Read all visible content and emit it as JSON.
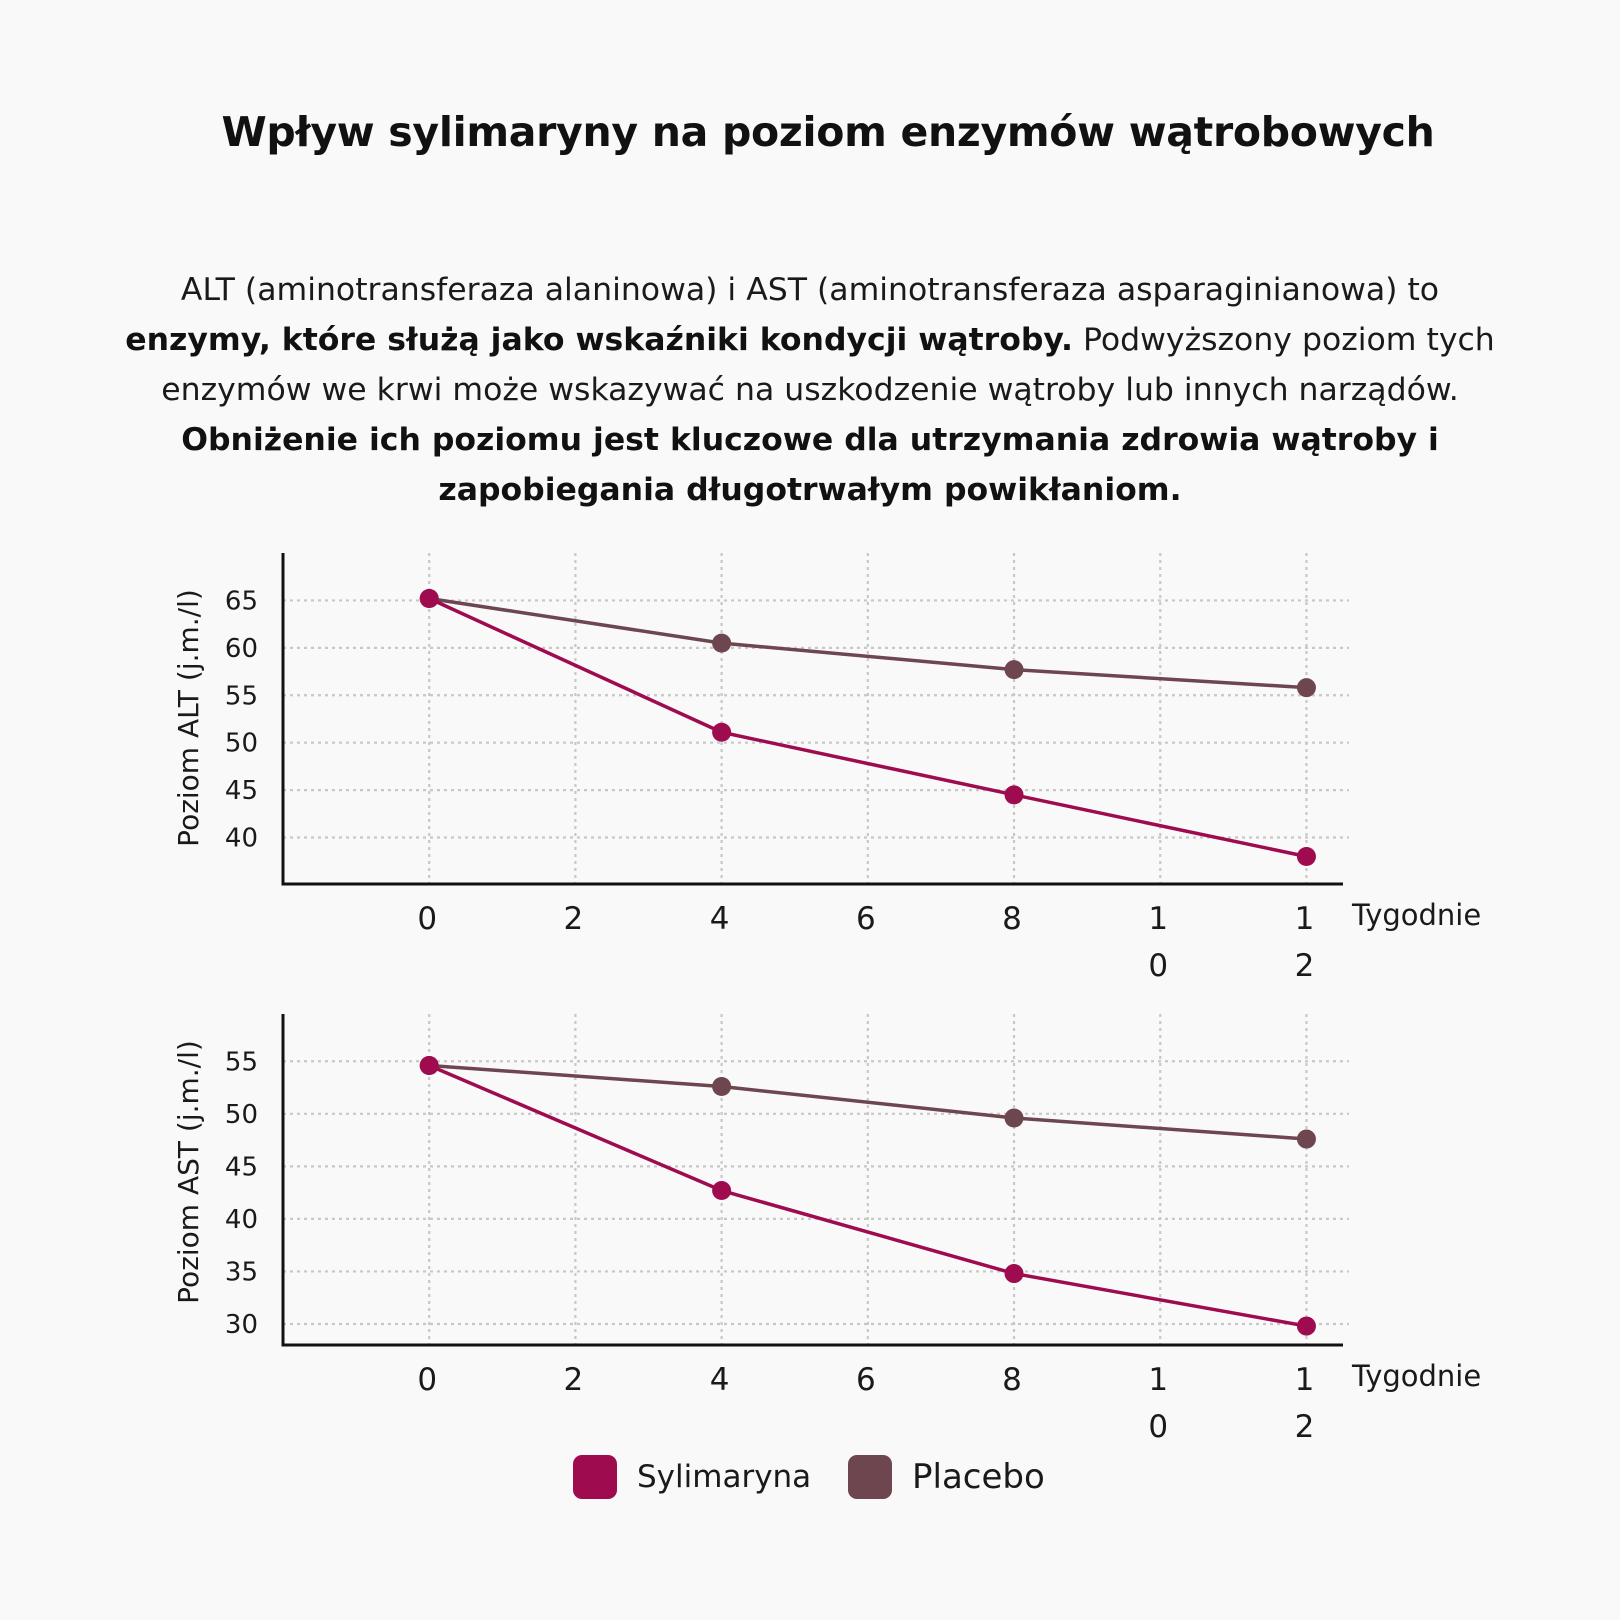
{
  "title": "Wpływ sylimaryny na poziom enzymów wątrobowych",
  "intro": {
    "p1": "ALT (aminotransferaza alaninowa) i AST (aminotransferaza asparaginianowa) to ",
    "b1": "enzymy, które służą jako wskaźniki kondycji wątroby.",
    "p2": " Podwyższony poziom tych enzymów we krwi może wskazywać na uszkodzenie wątroby lub innych narządów. ",
    "b2": "Obniżenie ich poziomu jest kluczowe dla utrzymania zdrowia wątroby i zapobiegania długotrwałym powikłaniom."
  },
  "colors": {
    "sylimaryna": "#9e0b4f",
    "placebo": "#6e4650",
    "axis": "#111111",
    "grid": "#c8c8c8"
  },
  "legend": [
    {
      "label": "Sylimaryna",
      "color": "#9e0b4f"
    },
    {
      "label": "Placebo",
      "color": "#6e4650"
    }
  ],
  "chart_data": [
    {
      "type": "line",
      "ylabel": "Poziom ALT (j.m./l)",
      "xlabel": "Tygodnie",
      "x_ticks": [
        {
          "value": 0,
          "lines": [
            "0"
          ]
        },
        {
          "value": 2,
          "lines": [
            "2"
          ]
        },
        {
          "value": 4,
          "lines": [
            "4"
          ]
        },
        {
          "value": 6,
          "lines": [
            "6"
          ]
        },
        {
          "value": 8,
          "lines": [
            "8"
          ]
        },
        {
          "value": 10,
          "lines": [
            "1",
            "0"
          ]
        },
        {
          "value": 12,
          "lines": [
            "1",
            "2"
          ]
        }
      ],
      "y_ticks": [
        40,
        45,
        50,
        55,
        60,
        65
      ],
      "xlim": [
        -2,
        12.5
      ],
      "ylim": [
        35.1,
        70
      ],
      "grid": true,
      "series": [
        {
          "name": "Sylimaryna",
          "x": [
            0,
            4,
            8,
            12
          ],
          "y": [
            65.2,
            51.1,
            44.5,
            38.0
          ]
        },
        {
          "name": "Placebo",
          "x": [
            0,
            4,
            8,
            12
          ],
          "y": [
            65.2,
            60.5,
            57.7,
            55.8
          ]
        }
      ]
    },
    {
      "type": "line",
      "ylabel": "Poziom AST (j.m./l)",
      "xlabel": "Tygodnie",
      "x_ticks": [
        {
          "value": 0,
          "lines": [
            "0"
          ]
        },
        {
          "value": 2,
          "lines": [
            "2"
          ]
        },
        {
          "value": 4,
          "lines": [
            "4"
          ]
        },
        {
          "value": 6,
          "lines": [
            "6"
          ]
        },
        {
          "value": 8,
          "lines": [
            "8"
          ]
        },
        {
          "value": 10,
          "lines": [
            "1",
            "0"
          ]
        },
        {
          "value": 12,
          "lines": [
            "1",
            "2"
          ]
        }
      ],
      "y_ticks": [
        30,
        35,
        40,
        45,
        50,
        55
      ],
      "xlim": [
        -2,
        12.5
      ],
      "ylim": [
        28,
        59.5
      ],
      "grid": true,
      "series": [
        {
          "name": "Sylimaryna",
          "x": [
            0,
            4,
            8,
            12
          ],
          "y": [
            54.6,
            42.7,
            34.8,
            29.8
          ]
        },
        {
          "name": "Placebo",
          "x": [
            0,
            4,
            8,
            12
          ],
          "y": [
            54.6,
            52.6,
            49.6,
            47.6
          ]
        }
      ]
    }
  ]
}
